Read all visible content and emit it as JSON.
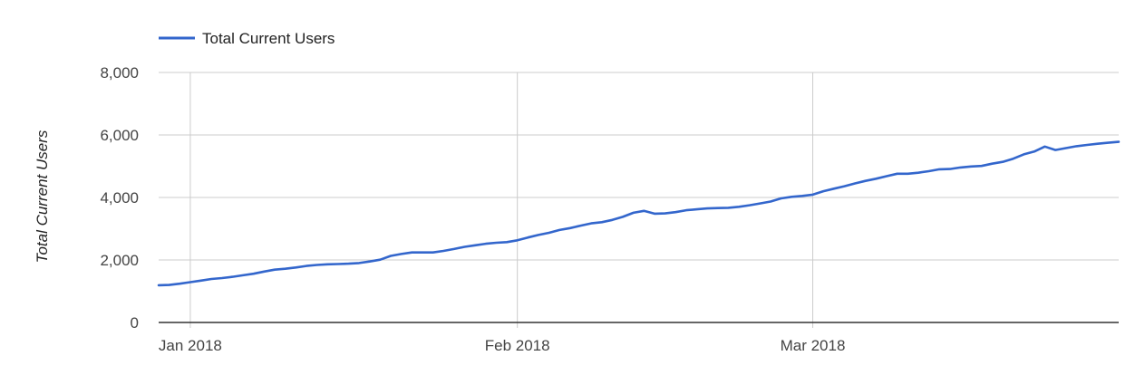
{
  "chart_data": {
    "type": "line",
    "title": "",
    "xlabel": "",
    "ylabel": "Total Current Users",
    "legend": {
      "position": "top-left",
      "entries": [
        "Total Current Users"
      ]
    },
    "grid": true,
    "ylim": [
      0,
      8000
    ],
    "xlim": [
      "2017-12-29",
      "2018-03-30"
    ],
    "y_ticks": [
      0,
      2000,
      4000,
      6000,
      8000
    ],
    "y_tick_labels": [
      "0",
      "2,000",
      "4,000",
      "6,000",
      "8,000"
    ],
    "x_ticks": [
      "2018-01-01",
      "2018-02-01",
      "2018-03-01"
    ],
    "x_tick_labels": [
      "Jan 2018",
      "Feb 2018",
      "Mar 2018"
    ],
    "series": [
      {
        "name": "Total Current Users",
        "color": "#3366cc",
        "x": [
          "2017-12-29",
          "2017-12-30",
          "2017-12-31",
          "2018-01-01",
          "2018-01-02",
          "2018-01-03",
          "2018-01-04",
          "2018-01-05",
          "2018-01-06",
          "2018-01-07",
          "2018-01-08",
          "2018-01-09",
          "2018-01-10",
          "2018-01-11",
          "2018-01-12",
          "2018-01-13",
          "2018-01-14",
          "2018-01-15",
          "2018-01-16",
          "2018-01-17",
          "2018-01-18",
          "2018-01-19",
          "2018-01-20",
          "2018-01-21",
          "2018-01-22",
          "2018-01-23",
          "2018-01-24",
          "2018-01-25",
          "2018-01-26",
          "2018-01-27",
          "2018-01-28",
          "2018-01-29",
          "2018-01-30",
          "2018-01-31",
          "2018-02-01",
          "2018-02-02",
          "2018-02-03",
          "2018-02-04",
          "2018-02-05",
          "2018-02-06",
          "2018-02-07",
          "2018-02-08",
          "2018-02-09",
          "2018-02-10",
          "2018-02-11",
          "2018-02-12",
          "2018-02-13",
          "2018-02-14",
          "2018-02-15",
          "2018-02-16",
          "2018-02-17",
          "2018-02-18",
          "2018-02-19",
          "2018-02-20",
          "2018-02-21",
          "2018-02-22",
          "2018-02-23",
          "2018-02-24",
          "2018-02-25",
          "2018-02-26",
          "2018-02-27",
          "2018-02-28",
          "2018-03-01",
          "2018-03-02",
          "2018-03-03",
          "2018-03-04",
          "2018-03-05",
          "2018-03-06",
          "2018-03-07",
          "2018-03-08",
          "2018-03-09",
          "2018-03-10",
          "2018-03-11",
          "2018-03-12",
          "2018-03-13",
          "2018-03-14",
          "2018-03-15",
          "2018-03-16",
          "2018-03-17",
          "2018-03-18",
          "2018-03-19",
          "2018-03-20",
          "2018-03-21",
          "2018-03-22",
          "2018-03-23",
          "2018-03-24",
          "2018-03-25",
          "2018-03-26",
          "2018-03-27",
          "2018-03-28",
          "2018-03-29",
          "2018-03-30"
        ],
        "values": [
          1190,
          1200,
          1240,
          1290,
          1340,
          1390,
          1420,
          1460,
          1510,
          1560,
          1630,
          1690,
          1720,
          1760,
          1810,
          1840,
          1860,
          1870,
          1880,
          1900,
          1950,
          2010,
          2130,
          2190,
          2240,
          2240,
          2240,
          2290,
          2350,
          2420,
          2470,
          2520,
          2550,
          2570,
          2630,
          2720,
          2800,
          2870,
          2960,
          3020,
          3100,
          3170,
          3210,
          3280,
          3380,
          3510,
          3570,
          3480,
          3490,
          3530,
          3590,
          3620,
          3650,
          3660,
          3670,
          3700,
          3750,
          3810,
          3870,
          3970,
          4020,
          4050,
          4090,
          4200,
          4280,
          4360,
          4450,
          4530,
          4600,
          4680,
          4760,
          4760,
          4790,
          4840,
          4900,
          4910,
          4960,
          4990,
          5010,
          5080,
          5140,
          5240,
          5380,
          5470,
          5630,
          5520,
          5580,
          5640,
          5680,
          5720,
          5750,
          5780
        ]
      }
    ]
  }
}
